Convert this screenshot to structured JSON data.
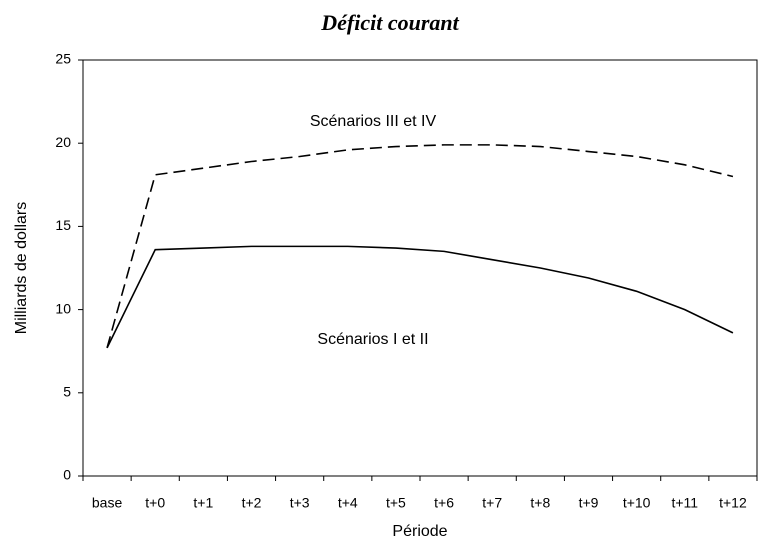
{
  "chart_data": {
    "type": "line",
    "title": "Déficit courant",
    "x_label": "Période",
    "y_label": "Milliards de dollars",
    "categories": [
      "base",
      "t+0",
      "t+1",
      "t+2",
      "t+3",
      "t+4",
      "t+5",
      "t+6",
      "t+7",
      "t+8",
      "t+9",
      "t+10",
      "t+11",
      "t+12"
    ],
    "series": [
      {
        "name": "Scénarios I et II",
        "color": "#000000",
        "dash": false,
        "values": [
          7.7,
          13.6,
          13.7,
          13.8,
          13.8,
          13.8,
          13.7,
          13.5,
          13.0,
          12.5,
          11.9,
          11.1,
          10.0,
          8.6
        ]
      },
      {
        "name": "Scénarios III et IV",
        "color": "#000000",
        "dash": true,
        "values": [
          7.7,
          18.1,
          18.5,
          18.9,
          19.2,
          19.6,
          19.8,
          19.9,
          19.9,
          19.8,
          19.5,
          19.2,
          18.7,
          18.0
        ]
      }
    ],
    "ylim": [
      0,
      25
    ],
    "yticks": [
      0,
      5,
      10,
      15,
      20,
      25
    ],
    "grid": false
  }
}
